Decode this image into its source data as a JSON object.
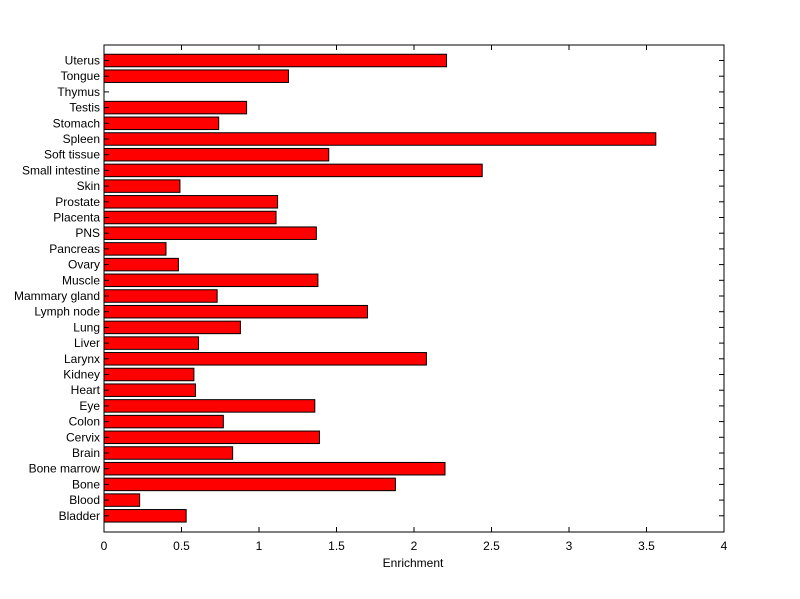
{
  "chart_data": {
    "type": "bar",
    "orientation": "horizontal",
    "xlabel": "Enrichment",
    "xlim": [
      0,
      4
    ],
    "xticks": [
      0,
      0.5,
      1,
      1.5,
      2,
      2.5,
      3,
      3.5,
      4
    ],
    "xtick_labels": [
      "0",
      "0.5",
      "1",
      "1.5",
      "2",
      "2.5",
      "3",
      "3.5",
      "4"
    ],
    "bar_color": "#ff0000",
    "edge_color": "#000000",
    "categories": [
      "Uterus",
      "Tongue",
      "Thymus",
      "Testis",
      "Stomach",
      "Spleen",
      "Soft tissue",
      "Small intestine",
      "Skin",
      "Prostate",
      "Placenta",
      "PNS",
      "Pancreas",
      "Ovary",
      "Muscle",
      "Mammary gland",
      "Lymph node",
      "Lung",
      "Liver",
      "Larynx",
      "Kidney",
      "Heart",
      "Eye",
      "Colon",
      "Cervix",
      "Brain",
      "Bone marrow",
      "Bone",
      "Blood",
      "Bladder"
    ],
    "values": [
      2.21,
      1.19,
      0.0,
      0.92,
      0.74,
      3.56,
      1.45,
      2.44,
      0.49,
      1.12,
      1.11,
      1.37,
      0.4,
      0.48,
      1.38,
      0.73,
      1.7,
      0.88,
      0.61,
      2.08,
      0.58,
      0.59,
      1.36,
      0.77,
      1.39,
      0.83,
      2.2,
      1.88,
      0.23,
      0.53
    ]
  }
}
